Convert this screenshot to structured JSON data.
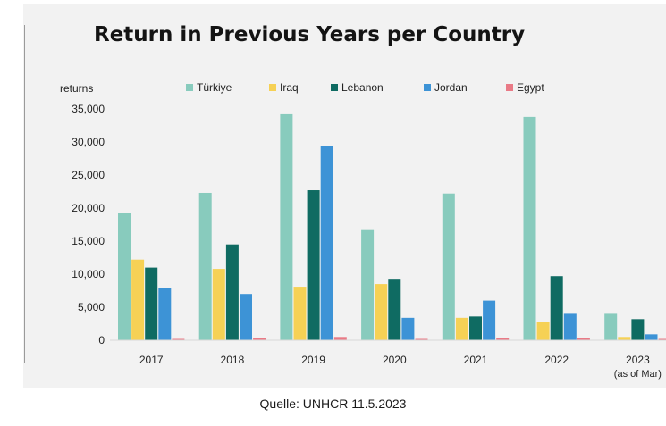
{
  "chart_data": {
    "type": "bar",
    "title": "Return in Previous Years per Country",
    "ylabel": "returns",
    "xlabel": "",
    "ylim": [
      0,
      35000
    ],
    "yticks": [
      0,
      5000,
      10000,
      15000,
      20000,
      25000,
      30000,
      35000
    ],
    "ytick_labels": [
      "0",
      "5,000",
      "10,000",
      "15,000",
      "20,000",
      "25,000",
      "30,000",
      "35,000"
    ],
    "grid": false,
    "legend_position": "top",
    "categories": [
      "2017",
      "2018",
      "2019",
      "2020",
      "2021",
      "2022",
      "2023"
    ],
    "category_sublabels": [
      "",
      "",
      "",
      "",
      "",
      "",
      "(as of Mar)"
    ],
    "series": [
      {
        "name": "Türkiye",
        "color": "#88cbbd",
        "values": [
          19300,
          22300,
          34200,
          16800,
          22200,
          33800,
          4000
        ]
      },
      {
        "name": "Iraq",
        "color": "#f6d155",
        "values": [
          12200,
          10800,
          8100,
          8500,
          3400,
          2800,
          500
        ]
      },
      {
        "name": "Lebanon",
        "color": "#0f6b62",
        "values": [
          11000,
          14500,
          22700,
          9300,
          3600,
          9700,
          3200
        ]
      },
      {
        "name": "Jordan",
        "color": "#3d93d6",
        "values": [
          7900,
          7000,
          29400,
          3400,
          6000,
          4000,
          900
        ]
      },
      {
        "name": "Egypt",
        "color": "#e97a86",
        "values": [
          200,
          300,
          500,
          100,
          400,
          400,
          100
        ]
      }
    ]
  },
  "caption": "Quelle: UNHCR 11.5.2023"
}
